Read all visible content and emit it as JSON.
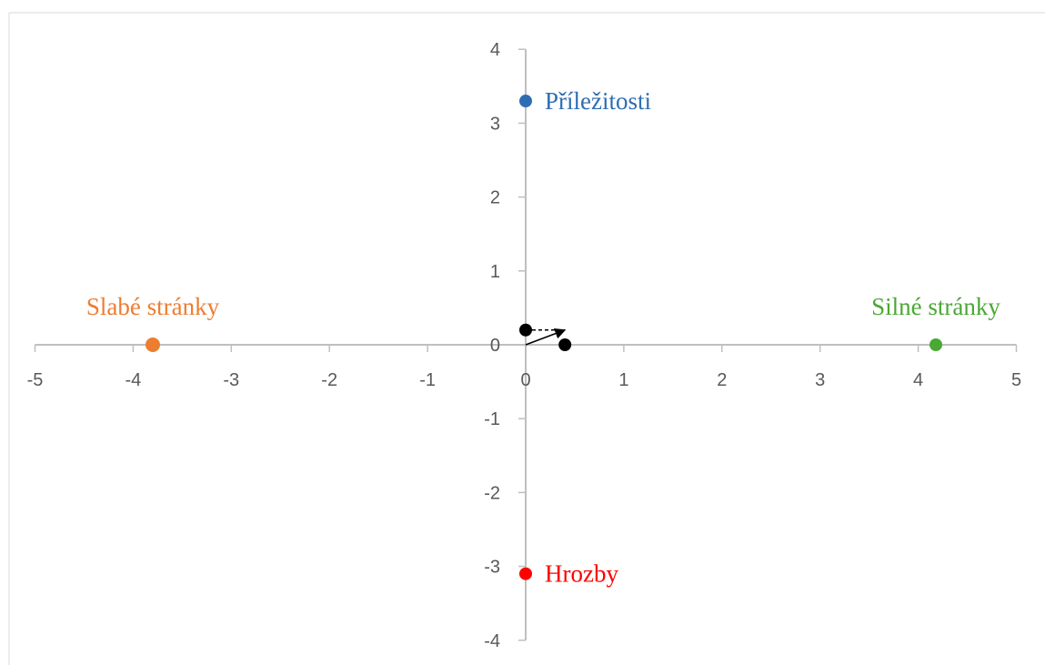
{
  "chart_data": {
    "type": "scatter",
    "title": "",
    "xlabel": "",
    "ylabel": "",
    "xlim": [
      -5,
      5
    ],
    "ylim": [
      -4,
      4
    ],
    "x_ticks": [
      -5,
      -4,
      -3,
      -2,
      -1,
      0,
      1,
      2,
      3,
      4,
      5
    ],
    "y_ticks": [
      -4,
      -3,
      -2,
      -1,
      0,
      1,
      2,
      3,
      4
    ],
    "grid": false,
    "axis_color": "#bfbfbf",
    "tick_label_color": "#595959",
    "points": [
      {
        "label": "Příležitosti",
        "x": 0,
        "y": 3.3,
        "color": "#2e6db4"
      },
      {
        "label": "Slabé stránky",
        "x": -3.8,
        "y": 0,
        "color": "#ed7d31"
      },
      {
        "label": "Silné stránky",
        "x": 4.18,
        "y": 0,
        "color": "#4aa834"
      },
      {
        "label": "Hrozby",
        "x": 0,
        "y": -3.1,
        "color": "#ff0000"
      },
      {
        "label": "",
        "x": 0,
        "y": 0.2,
        "color": "#000000"
      },
      {
        "label": "",
        "x": 0.4,
        "y": 0,
        "color": "#000000"
      }
    ],
    "resultant_vector": {
      "from": [
        0,
        0
      ],
      "to": [
        0.4,
        0.2
      ],
      "color": "#000000"
    },
    "guide_line": {
      "from": [
        0,
        0.2
      ],
      "to": [
        0.4,
        0.2
      ],
      "style": "dashed",
      "color": "#000000"
    }
  }
}
